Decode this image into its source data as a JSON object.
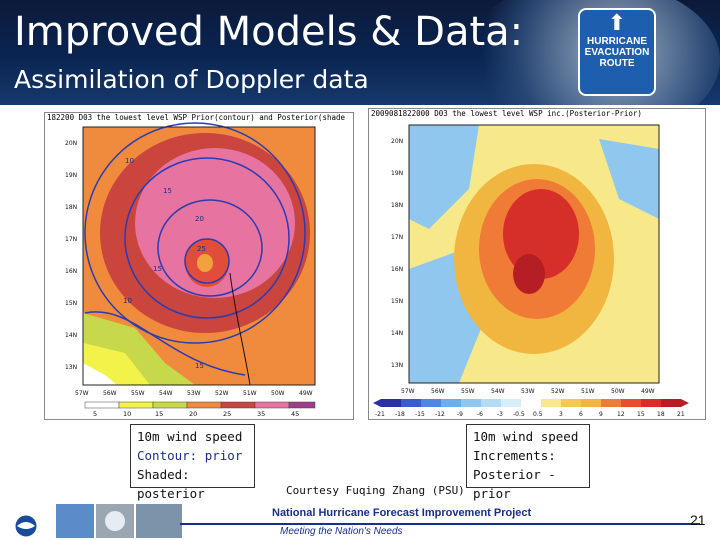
{
  "slide": {
    "title": "Improved Models & Data:",
    "subtitle": "Assimilation of Doppler data",
    "sign_lines": [
      "HURRICANE",
      "EVACUATION",
      "ROUTE"
    ]
  },
  "left_map": {
    "header": "182200 D03 the lowest level WSP Prior(contour) and Posterior(shade",
    "lat_ticks": [
      "20N",
      "19N",
      "18N",
      "17N",
      "16N",
      "15N",
      "14N",
      "13N"
    ],
    "lon_ticks": [
      "57W",
      "56W",
      "55W",
      "54W",
      "53W",
      "52W",
      "51W",
      "50W",
      "49W"
    ],
    "colorbar_ticks": [
      "5",
      "10",
      "15",
      "20",
      "25",
      "35",
      "45"
    ],
    "contour_labels": [
      "10",
      "15",
      "20",
      "25",
      "15",
      "10",
      "15"
    ],
    "label_lines": [
      "10m wind speed",
      "Contour: prior",
      "Shaded: posterior"
    ]
  },
  "right_map": {
    "header": "2009081822000 D03 the lowest level WSP inc.(Posterior-Prior)",
    "lat_ticks": [
      "20N",
      "19N",
      "18N",
      "17N",
      "16N",
      "15N",
      "14N",
      "13N"
    ],
    "lon_ticks": [
      "57W",
      "56W",
      "55W",
      "54W",
      "53W",
      "52W",
      "51W",
      "50W",
      "49W"
    ],
    "colorbar_ticks": [
      "-21",
      "-18",
      "-15",
      "-12",
      "-9",
      "-6",
      "-3",
      "-0.5",
      "0.5",
      "3",
      "6",
      "9",
      "12",
      "15",
      "18",
      "21"
    ],
    "label_lines": [
      "10m wind speed",
      "Increments:",
      "Posterior - prior"
    ]
  },
  "credit": "Courtesy Fuqing Zhang (PSU)",
  "footer": {
    "title": "National Hurricane Forecast Improvement Project",
    "subtitle": "Meeting the Nation's Needs",
    "page_number": "21"
  }
}
